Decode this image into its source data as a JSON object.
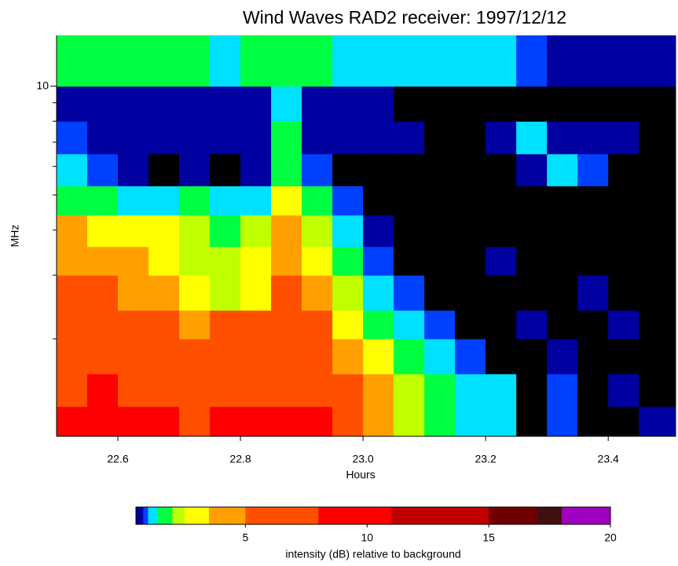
{
  "chart_data": {
    "type": "heatmap",
    "title": "Wind Waves RAD2 receiver: 1997/12/12",
    "x_label": "Hours",
    "y_label": "MHz",
    "xlim": [
      22.5,
      23.51
    ],
    "xticks": [
      22.6,
      22.8,
      {
        "value": 23,
        "label": "23.0"
      },
      23.2,
      23.4
    ],
    "ylim": [
      1.075,
      13.825
    ],
    "ylog": true,
    "yticks": [
      10
    ],
    "yminor_ticks": [
      2,
      3,
      4,
      5,
      6,
      7,
      8,
      9
    ],
    "xbins": [
      22.5,
      22.55,
      22.6,
      22.65,
      22.7,
      22.75,
      22.8,
      22.85,
      22.9,
      22.95,
      23.0,
      23.05,
      23.1,
      23.15,
      23.2,
      23.25,
      23.3,
      23.35,
      23.4,
      23.45,
      23.51
    ],
    "ybins": [
      1.075,
      1.3,
      1.6,
      2,
      2.4,
      3,
      3.6,
      4.4,
      5.3,
      6.5,
      8,
      10,
      13.825
    ],
    "z": [
      [
        8,
        9,
        8,
        8,
        7,
        8,
        8,
        8,
        8,
        7,
        4,
        2,
        1.5,
        1.2,
        1,
        0.3,
        0.8,
        0.3,
        0.3,
        0.7
      ],
      [
        7,
        8,
        7,
        6,
        7,
        7,
        6,
        7,
        6,
        5,
        4,
        2,
        1.5,
        1,
        1,
        0.4,
        0.8,
        0.3,
        0.7,
        0.3
      ],
      [
        6,
        6,
        6,
        5,
        6,
        6,
        5,
        6,
        5,
        4,
        3,
        1.5,
        1,
        0.8,
        0.3,
        0.3,
        0.7,
        0.3,
        0.3,
        0.3
      ],
      [
        5,
        6,
        5,
        5,
        4,
        5,
        5,
        6,
        5,
        3,
        1.5,
        1,
        0.8,
        0.3,
        0.3,
        0.7,
        0.3,
        0.3,
        0.7,
        0.3
      ],
      [
        5,
        5,
        4,
        4,
        3,
        2,
        3,
        5,
        4,
        2,
        1.2,
        0.8,
        0.3,
        0.3,
        0.3,
        0.3,
        0.3,
        0.7,
        0.3,
        0.3
      ],
      [
        4,
        4,
        4,
        3,
        2,
        2,
        3,
        4,
        3,
        1.5,
        0.9,
        0.4,
        0.3,
        0.3,
        0.7,
        0.3,
        0.3,
        0.3,
        0.3,
        0.3
      ],
      [
        3.5,
        3,
        3,
        2.5,
        2,
        1.5,
        2,
        4,
        2,
        1.2,
        0.6,
        0.3,
        0.3,
        0.3,
        0.3,
        0.3,
        0.3,
        0.3,
        0.3,
        0.3
      ],
      [
        1.5,
        1.5,
        1.2,
        1.2,
        1.5,
        1,
        1.2,
        2.5,
        1.5,
        0.8,
        0.4,
        0.3,
        0.3,
        0.3,
        0.3,
        0.3,
        0.3,
        0.3,
        0.3,
        0.3
      ],
      [
        1,
        0.9,
        0.5,
        0.4,
        0.6,
        0.4,
        0.5,
        1.5,
        0.8,
        0.4,
        0.3,
        0.3,
        0.3,
        0.3,
        0.3,
        0.6,
        1,
        0.9,
        0.4,
        0.3
      ],
      [
        0.8,
        0.7,
        0.7,
        0.6,
        0.6,
        0.5,
        0.6,
        1.5,
        0.7,
        0.6,
        0.5,
        0.5,
        0.4,
        0.4,
        0.6,
        1.2,
        0.6,
        0.5,
        0.5,
        0.4
      ],
      [
        0.6,
        0.5,
        0.5,
        0.6,
        0.5,
        0.5,
        0.5,
        1,
        0.6,
        0.5,
        0.5,
        0.4,
        0.4,
        0.4,
        0.4,
        0.4,
        0.4,
        0.4,
        0.4,
        0.4
      ],
      [
        1.5,
        1.5,
        1.5,
        1.5,
        1.5,
        1.2,
        1.5,
        1.5,
        1.5,
        1.2,
        1.2,
        1.2,
        1,
        1,
        1,
        0.8,
        0.6,
        0.5,
        0.5,
        0.6
      ]
    ],
    "background_color": "#000000",
    "color_stops": [
      {
        "value": 0.5,
        "color": "#0000a0"
      },
      {
        "value": 0.8,
        "color": "#0040ff"
      },
      {
        "value": 1.0,
        "color": "#00e0ff"
      },
      {
        "value": 1.4,
        "color": "#00ff40"
      },
      {
        "value": 2,
        "color": "#c0ff00"
      },
      {
        "value": 2.5,
        "color": "#ffff00"
      },
      {
        "value": 3.5,
        "color": "#ffa000"
      },
      {
        "value": 5,
        "color": "#ff5000"
      },
      {
        "value": 8,
        "color": "#ff0000"
      },
      {
        "value": 11,
        "color": "#c00000"
      },
      {
        "value": 15,
        "color": "#700000"
      },
      {
        "value": 17,
        "color": "#401010"
      },
      {
        "value": 18,
        "color": "#a000c0"
      }
    ],
    "colorbar_label": "intensity (dB) relative to background",
    "clim": [
      0.5,
      20
    ],
    "cticks": [
      5,
      10,
      15,
      20
    ]
  }
}
